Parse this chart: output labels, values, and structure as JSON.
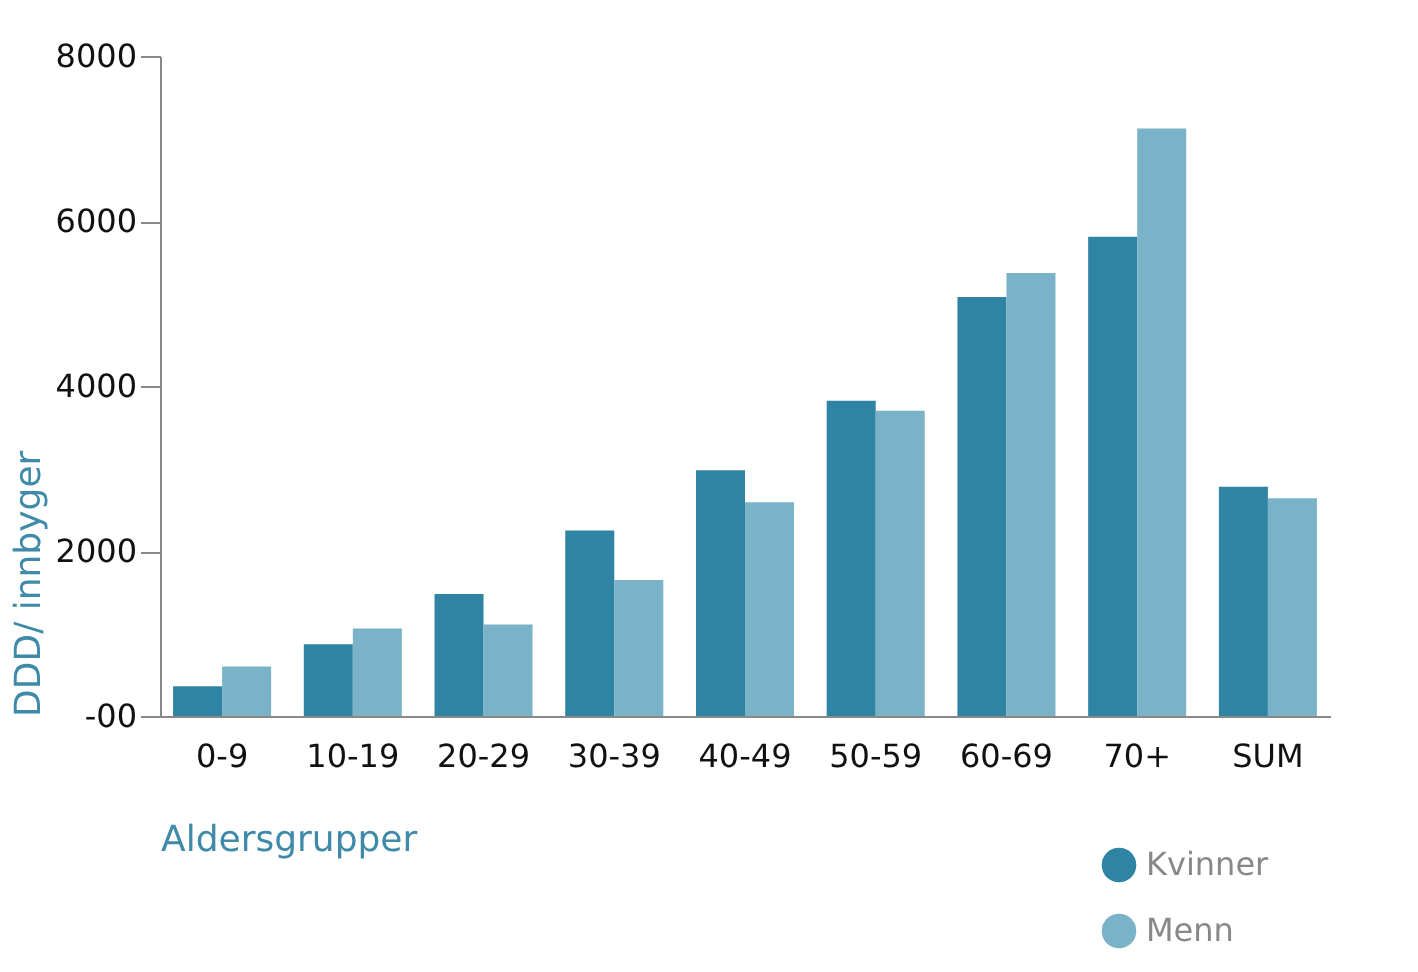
{
  "chart_data": {
    "type": "bar",
    "categories": [
      "0-9",
      "10-19",
      "20-29",
      "30-39",
      "40-49",
      "50-59",
      "60-69",
      "70+",
      "SUM"
    ],
    "series": [
      {
        "name": "Kvinner",
        "color": "#2e84a2",
        "values": [
          360,
          870,
          1480,
          2250,
          2980,
          3820,
          5080,
          5810,
          2780
        ]
      },
      {
        "name": "Menn",
        "color": "#7ab3c8",
        "values": [
          600,
          1060,
          1110,
          1650,
          2590,
          3700,
          5370,
          7120,
          2640
        ]
      }
    ],
    "xlabel": "Aldersgrupper",
    "ylabel": "DDD/ innbyger",
    "ylim": [
      0,
      8000
    ],
    "yticks": [
      {
        "value": 0,
        "label": "-00"
      },
      2000,
      4000,
      6000,
      8000
    ],
    "grid": false,
    "legend": "bottom right"
  }
}
